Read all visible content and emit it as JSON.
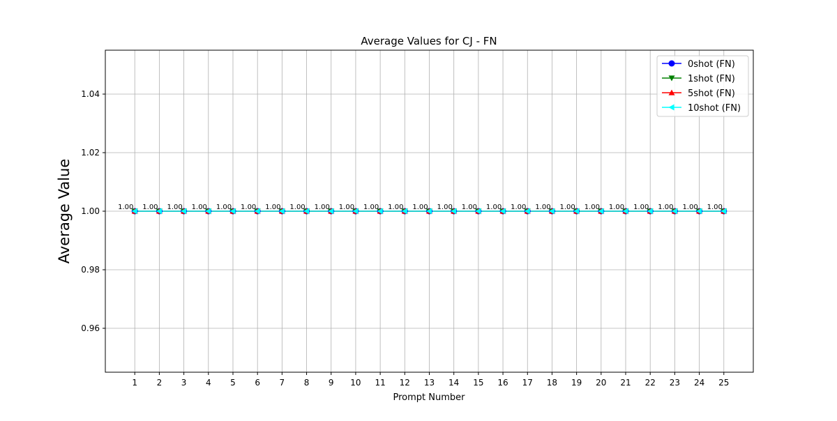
{
  "chart_data": {
    "type": "line",
    "title": "Average Values for CJ - FN",
    "xlabel": "Prompt Number",
    "ylabel": "Average Value",
    "x": [
      1,
      2,
      3,
      4,
      5,
      6,
      7,
      8,
      9,
      10,
      11,
      12,
      13,
      14,
      15,
      16,
      17,
      18,
      19,
      20,
      21,
      22,
      23,
      24,
      25
    ],
    "x_tick_labels": [
      "1",
      "2",
      "3",
      "4",
      "5",
      "6",
      "7",
      "8",
      "9",
      "10",
      "11",
      "12",
      "13",
      "14",
      "15",
      "16",
      "17",
      "18",
      "19",
      "20",
      "21",
      "22",
      "23",
      "24",
      "25"
    ],
    "xlim": [
      -0.2,
      26.2
    ],
    "ylim": [
      0.945,
      1.055
    ],
    "y_ticks": [
      0.96,
      0.98,
      1.0,
      1.02,
      1.04
    ],
    "y_tick_labels": [
      "0.96",
      "0.98",
      "1.00",
      "1.02",
      "1.04"
    ],
    "grid": true,
    "legend_position": "top-right",
    "data_label_text": "1.00",
    "series": [
      {
        "name": "0shot (FN)",
        "color": "#0000ff",
        "marker": "circle",
        "values": [
          1,
          1,
          1,
          1,
          1,
          1,
          1,
          1,
          1,
          1,
          1,
          1,
          1,
          1,
          1,
          1,
          1,
          1,
          1,
          1,
          1,
          1,
          1,
          1,
          1
        ]
      },
      {
        "name": "1shot (FN)",
        "color": "#008000",
        "marker": "triangle-down",
        "values": [
          1,
          1,
          1,
          1,
          1,
          1,
          1,
          1,
          1,
          1,
          1,
          1,
          1,
          1,
          1,
          1,
          1,
          1,
          1,
          1,
          1,
          1,
          1,
          1,
          1
        ]
      },
      {
        "name": "5shot (FN)",
        "color": "#ff0000",
        "marker": "triangle-up",
        "values": [
          1,
          1,
          1,
          1,
          1,
          1,
          1,
          1,
          1,
          1,
          1,
          1,
          1,
          1,
          1,
          1,
          1,
          1,
          1,
          1,
          1,
          1,
          1,
          1,
          1
        ]
      },
      {
        "name": "10shot (FN)",
        "color": "#00ffff",
        "marker": "triangle-left",
        "values": [
          1,
          1,
          1,
          1,
          1,
          1,
          1,
          1,
          1,
          1,
          1,
          1,
          1,
          1,
          1,
          1,
          1,
          1,
          1,
          1,
          1,
          1,
          1,
          1,
          1
        ]
      }
    ]
  }
}
